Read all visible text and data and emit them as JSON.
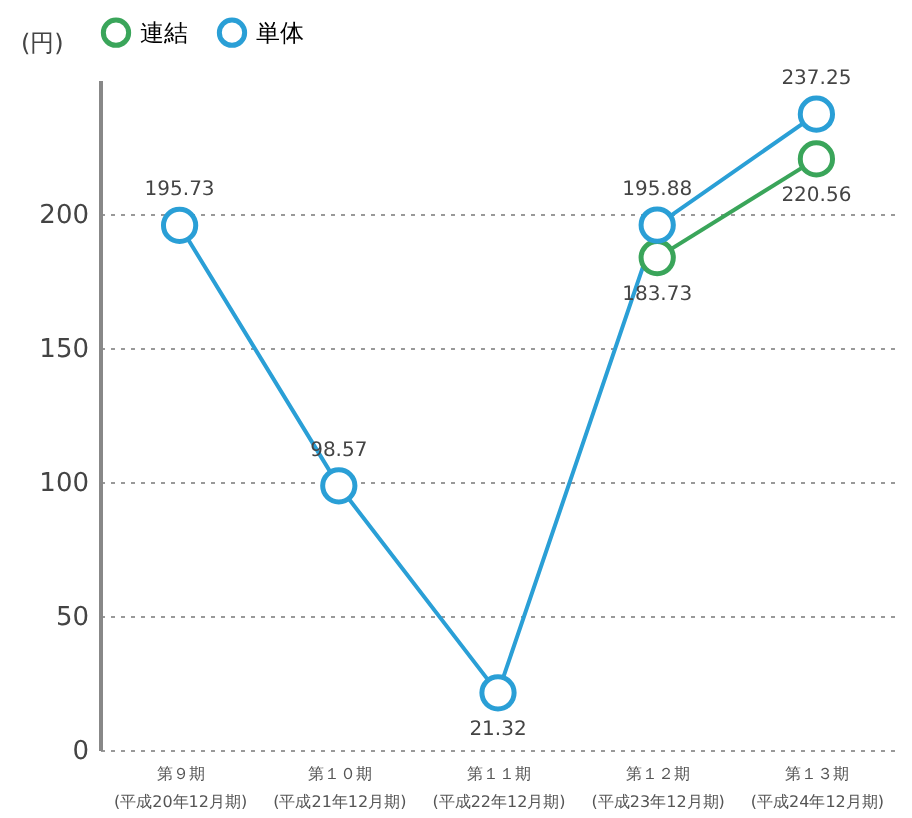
{
  "chart_data": {
    "type": "line",
    "ylabel": "(円)",
    "categories": [
      "第９期\n(平成20年12月期)",
      "第１０期\n(平成21年12月期)",
      "第１１期\n(平成22年12月期)",
      "第１２期\n(平成23年12月期)",
      "第１３期\n(平成24年12月期)"
    ],
    "series": [
      {
        "name": "連結",
        "color": "#3aa55a",
        "values": [
          null,
          null,
          null,
          183.73,
          220.56
        ]
      },
      {
        "name": "単体",
        "color": "#2a9fd6",
        "values": [
          195.73,
          98.57,
          21.32,
          195.88,
          237.25
        ]
      }
    ],
    "ylim": [
      0,
      250
    ],
    "yticks": [
      0,
      50,
      100,
      150,
      200
    ],
    "grid": "y",
    "legend": "top left",
    "marker": "circle",
    "line_style": "solid",
    "data_labels": true
  }
}
